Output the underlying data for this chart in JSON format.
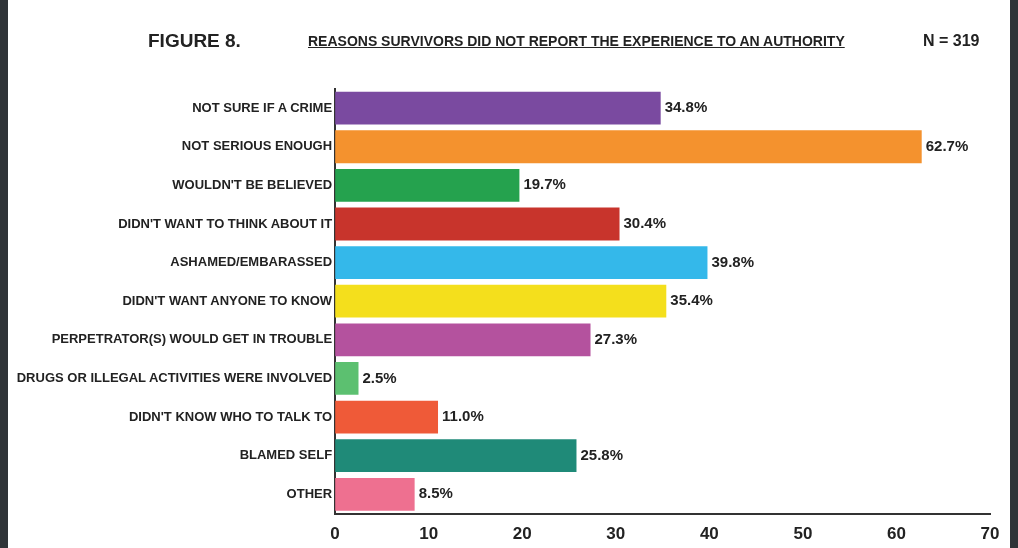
{
  "chart_data": {
    "type": "bar",
    "orientation": "horizontal",
    "title": "REASONS SURVIVORS DID NOT REPORT THE EXPERIENCE TO AN AUTHORITY",
    "annotations": [
      "FIGURE 8.",
      "N = 319"
    ],
    "categories": [
      "NOT SURE IF A CRIME",
      "NOT SERIOUS ENOUGH",
      "WOULDN'T BE BELIEVED",
      "DIDN'T WANT TO THINK ABOUT IT",
      "ASHAMED/EMBARASSED",
      "DIDN'T WANT ANYONE TO KNOW",
      "PERPETRATOR(S) WOULD GET IN TROUBLE",
      "DRUGS OR ILLEGAL ACTIVITIES WERE INVOLVED",
      "DIDN'T KNOW WHO TO TALK TO",
      "BLAMED SELF",
      "OTHER"
    ],
    "values": [
      34.8,
      62.7,
      19.7,
      30.4,
      39.8,
      35.4,
      27.3,
      2.5,
      11.0,
      25.8,
      8.5
    ],
    "value_labels": [
      "34.8%",
      "62.7%",
      "19.7%",
      "30.4%",
      "39.8%",
      "35.4%",
      "27.3%",
      "2.5%",
      "11.0%",
      "25.8%",
      "8.5%"
    ],
    "colors": [
      "#7a4aa0",
      "#f4922e",
      "#25a24e",
      "#c8342c",
      "#34b8ea",
      "#f4df1c",
      "#b4529e",
      "#5cc070",
      "#ef5a38",
      "#1f8a78",
      "#ee7090"
    ],
    "xlim": [
      0,
      70
    ],
    "xticks": [
      0,
      10,
      20,
      30,
      40,
      50,
      60,
      70
    ],
    "grid": false,
    "legend": false
  }
}
